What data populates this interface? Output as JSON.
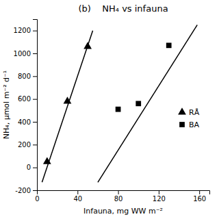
{
  "chart_data": {
    "type": "scatter",
    "title": "(b)    NH₄ vs infauna",
    "xlabel": "Infauna, mg WW m⁻²",
    "ylabel": "NH₄, μmol m⁻² d⁻¹",
    "xlim": [
      0,
      170
    ],
    "ylim": [
      -200,
      1300
    ],
    "xticks": [
      0,
      40,
      80,
      120,
      160
    ],
    "yticks": [
      -200,
      0,
      200,
      400,
      600,
      800,
      1000,
      1200
    ],
    "legend": "right",
    "series": [
      {
        "name": "RÅ",
        "type": "scatter",
        "marker": "triangle",
        "color": "black",
        "x": [
          10,
          30,
          50
        ],
        "values": [
          50,
          580,
          1060
        ]
      },
      {
        "name": "BA",
        "type": "scatter",
        "marker": "square",
        "color": "black",
        "x": [
          80,
          100,
          130
        ],
        "values": [
          510,
          560,
          1070
        ]
      },
      {
        "type": "line",
        "color": "black",
        "x": [
          5,
          55
        ],
        "values": [
          -130,
          1200
        ]
      },
      {
        "type": "line",
        "color": "black",
        "x": [
          60,
          158
        ],
        "values": [
          -130,
          1250
        ]
      }
    ]
  }
}
